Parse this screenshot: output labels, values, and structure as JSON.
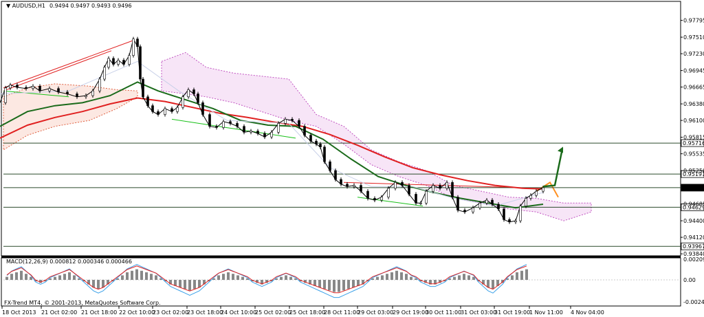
{
  "chart_data": {
    "type": "candlestick",
    "header": {
      "symbol": "AUDUSD,H1",
      "ohlc": "0.9494  0.9497  0.9493  0.9496",
      "indicator": "MACD(12,26,9) 0.000812 0.000346 0.000466"
    },
    "footer": "FX-Trend MT4, © 2001-2013, MetaQuotes Software Corp.",
    "price_axis": {
      "ticks": [
        "0.97795",
        "0.97510",
        "0.97230",
        "0.96945",
        "0.96665",
        "0.96380",
        "0.96100",
        "0.95815",
        "0.95535",
        "0.95250",
        "0.94685",
        "0.94400",
        "0.94120",
        "0.93840"
      ],
      "ylim": [
        0.9383,
        0.98
      ]
    },
    "levels": [
      {
        "label": "0.95716",
        "value": 0.95716,
        "highlight": false
      },
      {
        "label": "0.95191",
        "value": 0.95191,
        "highlight": false
      },
      {
        "label": "0.94961",
        "value": 0.94961,
        "highlight": true
      },
      {
        "label": "0.94629",
        "value": 0.94629,
        "highlight": false
      },
      {
        "label": "0.93967",
        "value": 0.93967,
        "highlight": false
      }
    ],
    "macd_axis": {
      "ticks": [
        "0.002091",
        "0.00",
        "-0.002487"
      ]
    },
    "time_labels": [
      "18 Oct 2013",
      "21 Oct 02:00",
      "21 Oct 18:00",
      "22 Oct 10:00",
      "23 Oct 02:00",
      "23 Oct 18:00",
      "24 Oct 10:00",
      "25 Oct 02:00",
      "25 Oct 18:00",
      "28 Oct 11:00",
      "29 Oct 03:00",
      "29 Oct 19:00",
      "30 Oct 11:00",
      "31 Oct 03:00",
      "31 Oct 19:00",
      "1 Nov 11:00",
      "4 Nov 04:00"
    ],
    "price_path": [
      [
        0,
        0.964
      ],
      [
        8,
        0.9665
      ],
      [
        15,
        0.967
      ],
      [
        25,
        0.9666
      ],
      [
        38,
        0.9664
      ],
      [
        48,
        0.9668
      ],
      [
        58,
        0.966
      ],
      [
        72,
        0.9664
      ],
      [
        85,
        0.9658
      ],
      [
        98,
        0.9655
      ],
      [
        112,
        0.965
      ],
      [
        125,
        0.9652
      ],
      [
        135,
        0.966
      ],
      [
        145,
        0.968
      ],
      [
        152,
        0.97
      ],
      [
        158,
        0.9715
      ],
      [
        165,
        0.9705
      ],
      [
        172,
        0.9712
      ],
      [
        180,
        0.9705
      ],
      [
        188,
        0.972
      ],
      [
        194,
        0.9748
      ],
      [
        200,
        0.9735
      ],
      [
        204,
        0.968
      ],
      [
        208,
        0.965
      ],
      [
        215,
        0.9635
      ],
      [
        222,
        0.9625
      ],
      [
        230,
        0.962
      ],
      [
        240,
        0.963
      ],
      [
        250,
        0.9625
      ],
      [
        258,
        0.9632
      ],
      [
        266,
        0.965
      ],
      [
        274,
        0.9662
      ],
      [
        282,
        0.9655
      ],
      [
        288,
        0.964
      ],
      [
        295,
        0.962
      ],
      [
        305,
        0.96
      ],
      [
        315,
        0.9598
      ],
      [
        325,
        0.9608
      ],
      [
        335,
        0.9605
      ],
      [
        345,
        0.96
      ],
      [
        355,
        0.959
      ],
      [
        365,
        0.9592
      ],
      [
        375,
        0.9588
      ],
      [
        385,
        0.9582
      ],
      [
        395,
        0.959
      ],
      [
        405,
        0.9605
      ],
      [
        415,
        0.9612
      ],
      [
        425,
        0.961
      ],
      [
        435,
        0.96
      ],
      [
        443,
        0.9585
      ],
      [
        452,
        0.9575
      ],
      [
        460,
        0.957
      ],
      [
        466,
        0.9565
      ],
      [
        472,
        0.954
      ],
      [
        480,
        0.9525
      ],
      [
        488,
        0.951
      ],
      [
        496,
        0.9502
      ],
      [
        505,
        0.9498
      ],
      [
        515,
        0.95
      ],
      [
        525,
        0.949
      ],
      [
        535,
        0.9478
      ],
      [
        545,
        0.9475
      ],
      [
        555,
        0.948
      ],
      [
        565,
        0.9495
      ],
      [
        575,
        0.9505
      ],
      [
        585,
        0.95
      ],
      [
        595,
        0.9485
      ],
      [
        605,
        0.947
      ],
      [
        612,
        0.947
      ],
      [
        620,
        0.949
      ],
      [
        630,
        0.95
      ],
      [
        640,
        0.9495
      ],
      [
        650,
        0.9505
      ],
      [
        658,
        0.948
      ],
      [
        666,
        0.9458
      ],
      [
        676,
        0.9455
      ],
      [
        688,
        0.9462
      ],
      [
        698,
        0.947
      ],
      [
        708,
        0.9475
      ],
      [
        716,
        0.9468
      ],
      [
        725,
        0.946
      ],
      [
        733,
        0.9442
      ],
      [
        741,
        0.9438
      ],
      [
        750,
        0.944
      ],
      [
        757,
        0.9465
      ],
      [
        765,
        0.9478
      ],
      [
        772,
        0.9483
      ],
      [
        780,
        0.949
      ],
      [
        790,
        0.9496
      ]
    ],
    "series": [
      {
        "name": "",
        "color": "#e02020",
        "width": 2,
        "values": [
          [
            0,
            0.958
          ],
          [
            40,
            0.9602
          ],
          [
            80,
            0.9615
          ],
          [
            120,
            0.9625
          ],
          [
            160,
            0.9638
          ],
          [
            200,
            0.9648
          ],
          [
            240,
            0.9642
          ],
          [
            280,
            0.9632
          ],
          [
            320,
            0.9622
          ],
          [
            360,
            0.9615
          ],
          [
            400,
            0.9607
          ],
          [
            440,
            0.96
          ],
          [
            480,
            0.9586
          ],
          [
            520,
            0.9568
          ],
          [
            560,
            0.9548
          ],
          [
            600,
            0.953
          ],
          [
            640,
            0.9518
          ],
          [
            680,
            0.9508
          ],
          [
            720,
            0.95
          ],
          [
            760,
            0.9495
          ],
          [
            790,
            0.9494
          ]
        ]
      },
      {
        "name": "",
        "color": "#1a6a1a",
        "width": 2,
        "values": [
          [
            0,
            0.96
          ],
          [
            40,
            0.9625
          ],
          [
            80,
            0.9635
          ],
          [
            120,
            0.964
          ],
          [
            160,
            0.9652
          ],
          [
            200,
            0.9675
          ],
          [
            230,
            0.966
          ],
          [
            270,
            0.9645
          ],
          [
            310,
            0.963
          ],
          [
            350,
            0.961
          ],
          [
            390,
            0.9602
          ],
          [
            430,
            0.96
          ],
          [
            470,
            0.9578
          ],
          [
            510,
            0.9545
          ],
          [
            550,
            0.9515
          ],
          [
            590,
            0.95
          ],
          [
            630,
            0.9488
          ],
          [
            670,
            0.9478
          ],
          [
            710,
            0.947
          ],
          [
            750,
            0.9462
          ],
          [
            790,
            0.9468
          ]
        ]
      },
      {
        "name": "",
        "color": "#c8d0e8",
        "width": 1,
        "values": [
          [
            0,
            0.9655
          ],
          [
            100,
            0.966
          ],
          [
            200,
            0.971
          ],
          [
            260,
            0.966
          ],
          [
            330,
            0.961
          ],
          [
            420,
            0.9605
          ],
          [
            480,
            0.953
          ],
          [
            540,
            0.9498
          ],
          [
            600,
            0.9498
          ],
          [
            660,
            0.9478
          ],
          [
            720,
            0.9465
          ],
          [
            790,
            0.9488
          ]
        ]
      }
    ],
    "cloud_old": [
      [
        5,
        0.965,
        0.956
      ],
      [
        40,
        0.9665,
        0.9585
      ],
      [
        80,
        0.9672,
        0.96
      ],
      [
        130,
        0.9668,
        0.961
      ],
      [
        170,
        0.9662,
        0.963
      ],
      [
        200,
        0.966,
        0.965
      ]
    ],
    "cloud_new": [
      [
        235,
        0.971,
        0.966
      ],
      [
        270,
        0.9725,
        0.9655
      ],
      [
        300,
        0.97,
        0.965
      ],
      [
        340,
        0.969,
        0.964
      ],
      [
        380,
        0.9685,
        0.9625
      ],
      [
        420,
        0.968,
        0.961
      ],
      [
        460,
        0.962,
        0.96
      ],
      [
        500,
        0.96,
        0.957
      ],
      [
        540,
        0.956,
        0.9535
      ],
      [
        580,
        0.954,
        0.9515
      ],
      [
        620,
        0.9525,
        0.95
      ],
      [
        660,
        0.95,
        0.9478
      ],
      [
        700,
        0.949,
        0.947
      ],
      [
        740,
        0.948,
        0.946
      ],
      [
        780,
        0.9478,
        0.9455
      ],
      [
        820,
        0.947,
        0.944
      ],
      [
        860,
        0.947,
        0.9455
      ]
    ],
    "trend_lines": [
      {
        "color": "#e02020",
        "points": [
          [
            5,
            0.9665
          ],
          [
            195,
            0.9746
          ]
        ]
      },
      {
        "color": "#e02020",
        "points": [
          [
            5,
            0.966
          ],
          [
            162,
            0.9728
          ]
        ]
      },
      {
        "color": "#18c018",
        "points": [
          [
            5,
            0.966
          ],
          [
            100,
            0.965
          ]
        ]
      },
      {
        "color": "#18c018",
        "points": [
          [
            250,
            0.9612
          ],
          [
            430,
            0.958
          ]
        ]
      },
      {
        "color": "#18c018",
        "points": [
          [
            520,
            0.948
          ],
          [
            615,
            0.9465
          ]
        ]
      },
      {
        "color": "#e02020",
        "points": [
          [
            500,
            0.9505
          ],
          [
            760,
            0.9496
          ]
        ]
      },
      {
        "color": "#ff9020",
        "points": [
          [
            780,
            0.949
          ],
          [
            800,
            0.9505
          ],
          [
            812,
            0.948
          ]
        ]
      }
    ],
    "projection": {
      "color": "#1a6a1a",
      "points": [
        [
          790,
          0.9498
        ],
        [
          807,
          0.95
        ],
        [
          818,
          0.9562
        ]
      ]
    },
    "macd_bars": [
      2,
      4,
      5,
      6,
      4,
      2,
      -1,
      -2,
      -1,
      1,
      2,
      3,
      4,
      5,
      3,
      1,
      -1,
      -3,
      -5,
      -6,
      -5,
      -3,
      -1,
      1,
      3,
      5,
      6,
      7,
      6,
      5,
      4,
      3,
      1,
      -1,
      -3,
      -4,
      -5,
      -6,
      -7,
      -6,
      -5,
      -3,
      -1,
      1,
      3,
      4,
      5,
      4,
      3,
      2,
      1,
      -1,
      -2,
      -3,
      -2,
      -1,
      1,
      2,
      3,
      2,
      1,
      -1,
      -2,
      -3,
      -4,
      -5,
      -6,
      -7,
      -8,
      -8,
      -7,
      -6,
      -5,
      -4,
      -3,
      -1,
      1,
      2,
      3,
      4,
      5,
      6,
      5,
      4,
      2,
      1,
      -1,
      -2,
      -3,
      -3,
      -2,
      -1,
      1,
      2,
      3,
      4,
      3,
      2,
      -1,
      -3,
      -5,
      -6,
      -4,
      -2,
      1,
      3,
      5,
      6,
      7
    ]
  }
}
